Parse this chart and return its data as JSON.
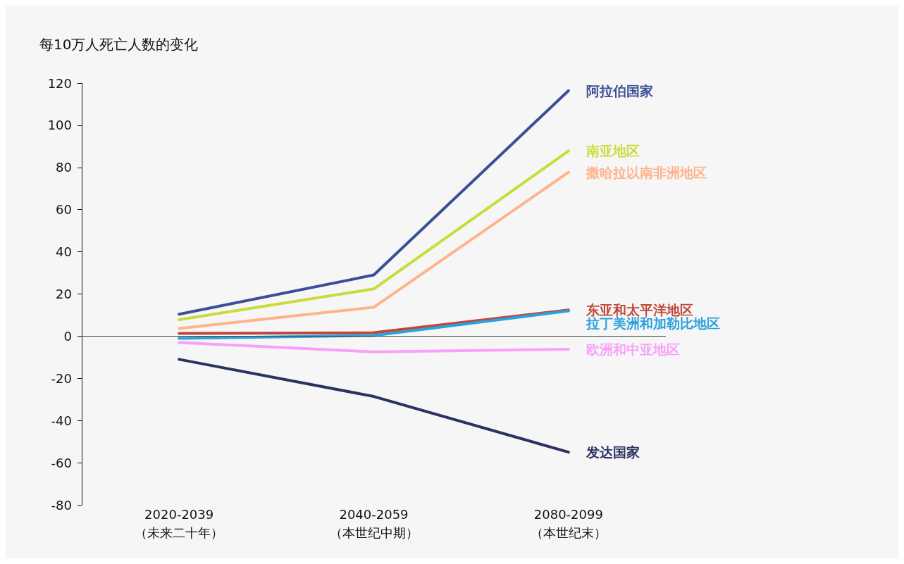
{
  "chart_data": {
    "type": "line",
    "ylabel": "每10万人死亡人数的变化",
    "categories": [
      "2020-2039\n（未来二十年）",
      "2040-2059\n（本世纪中期）",
      "2080-2099\n（本世纪末）"
    ],
    "ylim": [
      -80,
      120
    ],
    "yticks": [
      -80,
      -60,
      -40,
      -20,
      0,
      20,
      40,
      60,
      80,
      100,
      120
    ],
    "grid": false,
    "ref_lines": [
      {
        "axis": "y",
        "value": 0,
        "color": "#444444"
      }
    ],
    "legend": false,
    "marker": "none",
    "line_style": "solid",
    "series": [
      {
        "name": "阿拉伯国家",
        "color": "#3a4f94",
        "values": [
          10.4,
          29,
          116.4
        ]
      },
      {
        "name": "南亚地区",
        "color": "#c8dc3a",
        "values": [
          7.8,
          22.4,
          87.8
        ]
      },
      {
        "name": "撒哈拉以南非洲地区",
        "color": "#ffb38a",
        "values": [
          3.6,
          13.7,
          77.7
        ]
      },
      {
        "name": "东亚和太平洋地区",
        "color": "#c0463a",
        "values": [
          1.3,
          1.6,
          12.4
        ]
      },
      {
        "name": "拉丁美洲和加勒比地区",
        "color": "#2aa2dc",
        "values": [
          -1,
          0.3,
          12
        ]
      },
      {
        "name": "欧洲和中亚地区",
        "color": "#f9a0f9",
        "values": [
          -3,
          -7.5,
          -6.2
        ]
      },
      {
        "name": "发达国家",
        "color": "#2b3260",
        "values": [
          -11,
          -28.6,
          -55
        ]
      }
    ]
  }
}
